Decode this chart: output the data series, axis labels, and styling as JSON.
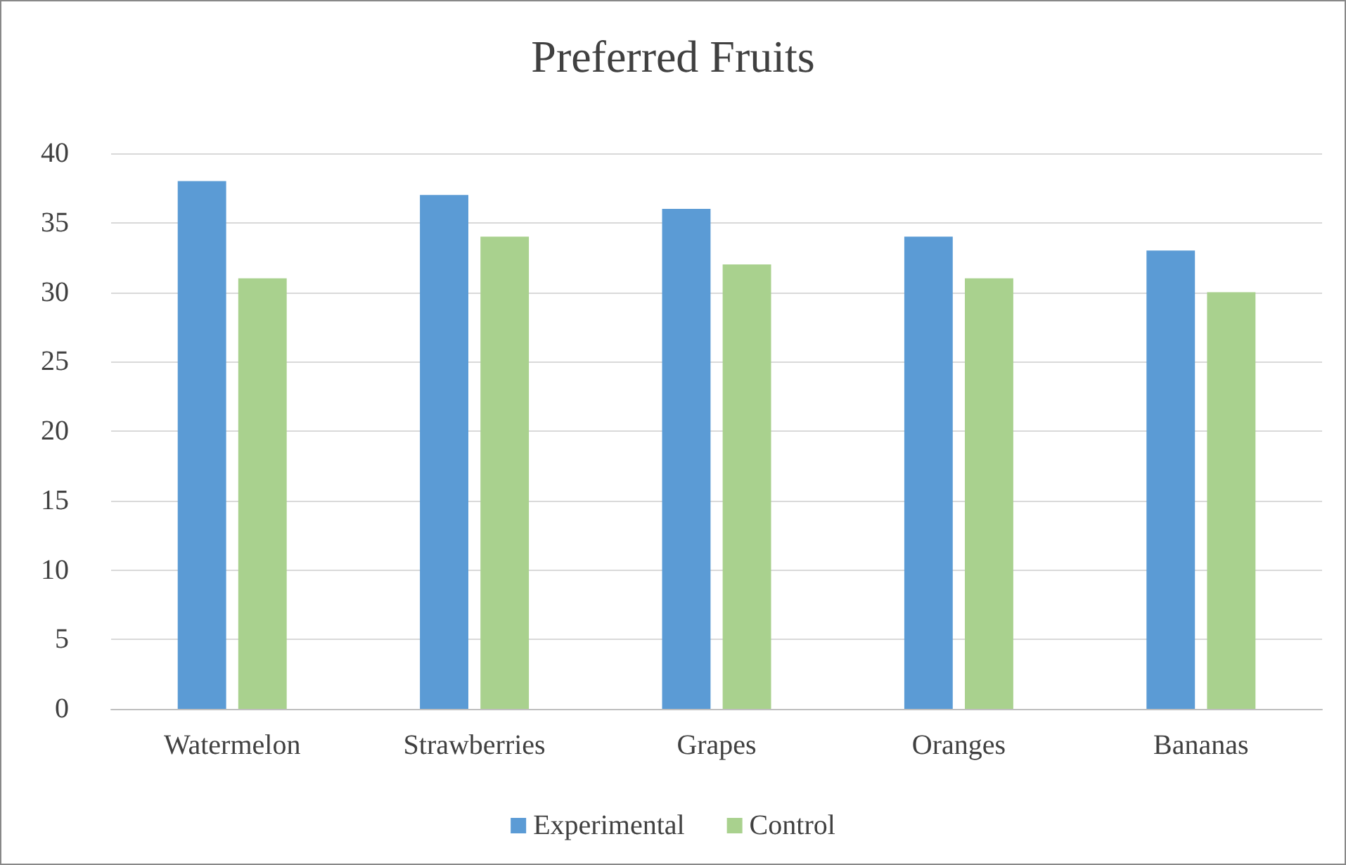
{
  "chart_data": {
    "type": "bar",
    "title": "Preferred Fruits",
    "categories": [
      "Watermelon",
      "Strawberries",
      "Grapes",
      "Oranges",
      "Bananas"
    ],
    "series": [
      {
        "name": "Experimental",
        "color": "#5b9bd5",
        "values": [
          38,
          37,
          36,
          34,
          33
        ]
      },
      {
        "name": "Control",
        "color": "#a9d18e",
        "values": [
          31,
          34,
          32,
          31,
          30
        ]
      }
    ],
    "ylim": [
      0,
      40
    ],
    "yticks": [
      0,
      5,
      10,
      15,
      20,
      25,
      30,
      35,
      40
    ],
    "grid": "y",
    "legend": "bottom"
  }
}
